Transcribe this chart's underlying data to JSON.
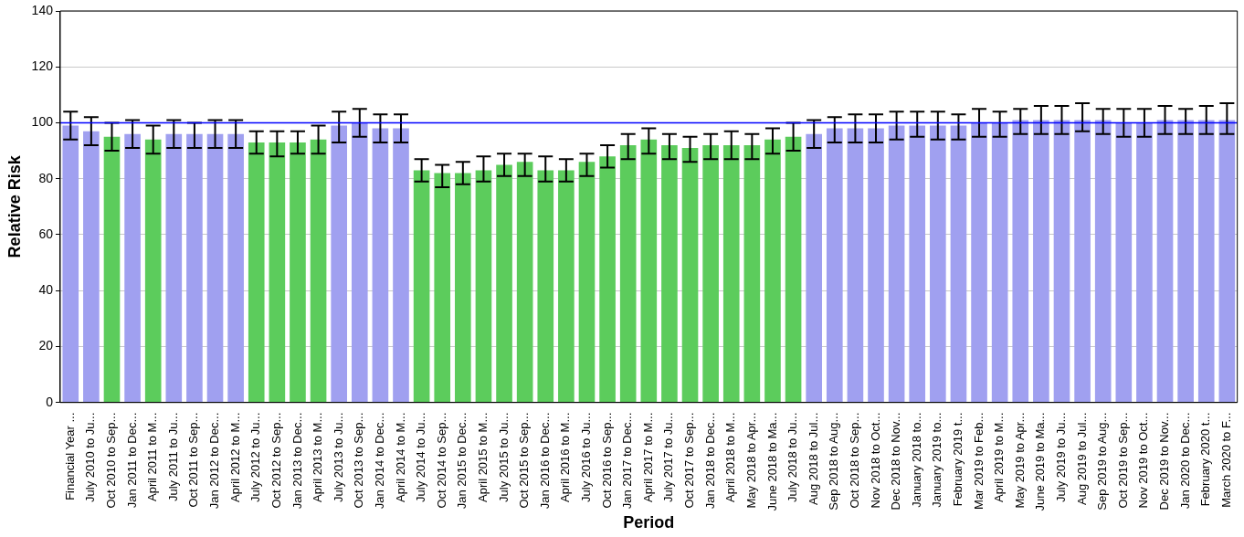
{
  "chart_data": {
    "type": "bar",
    "xlabel": "Period",
    "ylabel": "Relative Risk",
    "categories": [
      "Financial Year ...",
      "July 2010 to Ju...",
      "Oct 2010 to Sep...",
      "Jan 2011 to Dec...",
      "April 2011 to M...",
      "July 2011 to Ju...",
      "Oct 2011 to Sep...",
      "Jan 2012 to Dec...",
      "April 2012 to M...",
      "July 2012 to Ju...",
      "Oct 2012 to Sep...",
      "Jan 2013 to Dec...",
      "April 2013 to M...",
      "July 2013 to Ju...",
      "Oct 2013 to Sep...",
      "Jan 2014 to Dec...",
      "April 2014 to M...",
      "July 2014 to Ju...",
      "Oct 2014 to Sep...",
      "Jan 2015 to Dec...",
      "April 2015 to M...",
      "July 2015 to Ju...",
      "Oct 2015 to Sep...",
      "Jan 2016 to Dec...",
      "April 2016 to M...",
      "July 2016 to Ju...",
      "Oct 2016 to Sep...",
      "Jan 2017 to Dec...",
      "April 2017 to M...",
      "July 2017 to Ju...",
      "Oct 2017 to Sep...",
      "Jan 2018 to Dec...",
      "April 2018 to M...",
      "May 2018 to Apr...",
      "June 2018 to Ma...",
      "July 2018 to Ju...",
      "Aug 2018 to Jul...",
      "Sep 2018 to Aug...",
      "Oct 2018 to Sep...",
      "Nov 2018 to Oct...",
      "Dec 2018 to Nov...",
      "January 2018 to...",
      "January 2019 to...",
      "February 2019 t...",
      "Mar 2019 to Feb...",
      "April 2019 to M...",
      "May 2019 to Apr...",
      "June 2019 to Ma...",
      "July 2019 to Ju...",
      "Aug 2019 to Jul...",
      "Sep 2019 to Aug...",
      "Oct 2019 to Sep...",
      "Nov 2019 to Oct...",
      "Dec 2019 to Nov...",
      "Jan 2020 to Dec...",
      "February 2020 t...",
      "March 2020 to F..."
    ],
    "values": [
      99,
      97,
      95,
      96,
      94,
      96,
      96,
      96,
      96,
      93,
      93,
      93,
      94,
      99,
      100,
      98,
      98,
      83,
      82,
      82,
      83,
      85,
      86,
      83,
      83,
      86,
      88,
      92,
      94,
      92,
      91,
      92,
      92,
      92,
      94,
      95,
      96,
      98,
      98,
      98,
      99,
      99,
      99,
      99,
      100,
      100,
      101,
      101,
      101,
      101,
      101,
      100,
      100,
      101,
      101,
      101,
      101
    ],
    "errors": [
      [
        94,
        104
      ],
      [
        92,
        102
      ],
      [
        90,
        100
      ],
      [
        91,
        101
      ],
      [
        89,
        99
      ],
      [
        91,
        101
      ],
      [
        91,
        100
      ],
      [
        91,
        101
      ],
      [
        91,
        101
      ],
      [
        89,
        97
      ],
      [
        88,
        97
      ],
      [
        89,
        97
      ],
      [
        89,
        99
      ],
      [
        93,
        104
      ],
      [
        95,
        105
      ],
      [
        93,
        103
      ],
      [
        93,
        103
      ],
      [
        79,
        87
      ],
      [
        77,
        85
      ],
      [
        78,
        86
      ],
      [
        79,
        88
      ],
      [
        81,
        89
      ],
      [
        81,
        89
      ],
      [
        79,
        88
      ],
      [
        79,
        87
      ],
      [
        81,
        89
      ],
      [
        84,
        92
      ],
      [
        87,
        96
      ],
      [
        89,
        98
      ],
      [
        87,
        96
      ],
      [
        86,
        95
      ],
      [
        87,
        96
      ],
      [
        87,
        97
      ],
      [
        87,
        96
      ],
      [
        89,
        98
      ],
      [
        90,
        100
      ],
      [
        91,
        101
      ],
      [
        93,
        102
      ],
      [
        93,
        103
      ],
      [
        93,
        103
      ],
      [
        94,
        104
      ],
      [
        95,
        104
      ],
      [
        94,
        104
      ],
      [
        94,
        103
      ],
      [
        95,
        105
      ],
      [
        95,
        104
      ],
      [
        96,
        105
      ],
      [
        96,
        106
      ],
      [
        96,
        106
      ],
      [
        97,
        107
      ],
      [
        96,
        105
      ],
      [
        95,
        105
      ],
      [
        95,
        105
      ],
      [
        96,
        106
      ],
      [
        96,
        105
      ],
      [
        96,
        106
      ],
      [
        96,
        107
      ]
    ],
    "colors": [
      "#a0a0f0",
      "#a0a0f0",
      "#5ccc5c",
      "#a0a0f0",
      "#5ccc5c",
      "#a0a0f0",
      "#a0a0f0",
      "#a0a0f0",
      "#a0a0f0",
      "#5ccc5c",
      "#5ccc5c",
      "#5ccc5c",
      "#5ccc5c",
      "#a0a0f0",
      "#a0a0f0",
      "#a0a0f0",
      "#a0a0f0",
      "#5ccc5c",
      "#5ccc5c",
      "#5ccc5c",
      "#5ccc5c",
      "#5ccc5c",
      "#5ccc5c",
      "#5ccc5c",
      "#5ccc5c",
      "#5ccc5c",
      "#5ccc5c",
      "#5ccc5c",
      "#5ccc5c",
      "#5ccc5c",
      "#5ccc5c",
      "#5ccc5c",
      "#5ccc5c",
      "#5ccc5c",
      "#5ccc5c",
      "#5ccc5c",
      "#a0a0f0",
      "#a0a0f0",
      "#a0a0f0",
      "#a0a0f0",
      "#a0a0f0",
      "#a0a0f0",
      "#a0a0f0",
      "#a0a0f0",
      "#a0a0f0",
      "#a0a0f0",
      "#a0a0f0",
      "#a0a0f0",
      "#a0a0f0",
      "#a0a0f0",
      "#a0a0f0",
      "#a0a0f0",
      "#a0a0f0",
      "#a0a0f0",
      "#a0a0f0",
      "#a0a0f0",
      "#a0a0f0"
    ],
    "ylim": [
      0,
      140
    ],
    "yticks": [
      0,
      20,
      40,
      60,
      80,
      100,
      120,
      140
    ],
    "grid": "y",
    "legend": false,
    "ref_lines": [
      {
        "axis": "y",
        "value": 100,
        "color": "#0000ff"
      }
    ]
  }
}
